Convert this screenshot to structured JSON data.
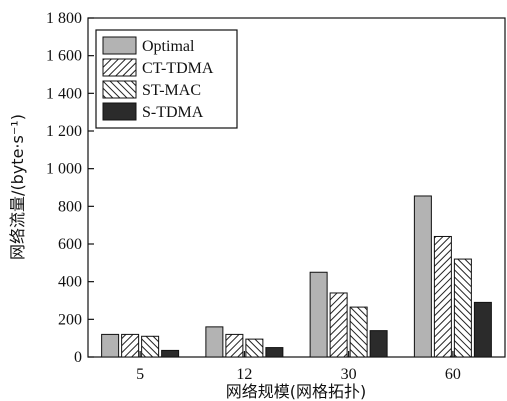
{
  "chart_data": {
    "type": "bar",
    "title": "",
    "xlabel": "网络规模(网格拓扑)",
    "ylabel": "网络流量/(byte·s⁻¹)",
    "categories": [
      "5",
      "12",
      "30",
      "60"
    ],
    "ylim": [
      0,
      1800
    ],
    "yticks": [
      "0",
      "200",
      "400",
      "600",
      "800",
      "1 000",
      "1 200",
      "1 400",
      "1 600",
      "1 800"
    ],
    "grid": false,
    "legend_position": "top-left",
    "series": [
      {
        "name": "Optimal",
        "values": [
          120,
          160,
          450,
          855
        ],
        "color": "#b3b3b3",
        "pattern": "solid-light"
      },
      {
        "name": "CT-TDMA",
        "values": [
          120,
          120,
          340,
          640
        ],
        "color": "#ffffff",
        "pattern": "hatch-right"
      },
      {
        "name": "ST-MAC",
        "values": [
          110,
          95,
          265,
          520
        ],
        "color": "#ffffff",
        "pattern": "hatch-left"
      },
      {
        "name": "S-TDMA",
        "values": [
          35,
          50,
          140,
          290
        ],
        "color": "#2b2b2b",
        "pattern": "solid-dark"
      }
    ]
  }
}
